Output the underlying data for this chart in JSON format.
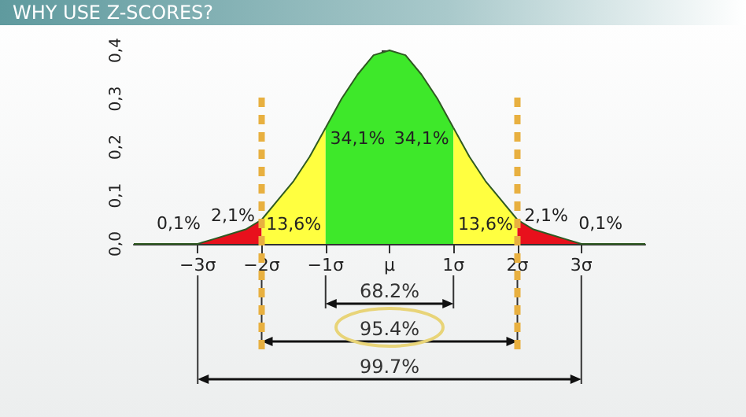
{
  "chart_data": {
    "type": "area",
    "title": "WHY USE Z-SCORES?",
    "xlim": [
      -4,
      4
    ],
    "xticks": [
      {
        "value": -3,
        "label": "−3σ"
      },
      {
        "value": -2,
        "label": "−2σ"
      },
      {
        "value": -1,
        "label": "−1σ"
      },
      {
        "value": 0,
        "label": "μ"
      },
      {
        "value": 1,
        "label": "1σ"
      },
      {
        "value": 2,
        "label": "2σ"
      },
      {
        "value": 3,
        "label": "3σ"
      }
    ],
    "ylim": [
      0,
      0.4
    ],
    "yticks": [
      {
        "value": 0,
        "label": "0,0"
      },
      {
        "value": 0.1,
        "label": "0,1"
      },
      {
        "value": 0.2,
        "label": "0,2"
      },
      {
        "value": 0.3,
        "label": "0,3"
      },
      {
        "value": 0.4,
        "label": "0,4"
      }
    ],
    "marker": "none",
    "series": [
      {
        "color": "#e8101c",
        "x": [
          -4,
          -3.5,
          -3,
          -2.75,
          -2.5,
          -2.25,
          -2
        ],
        "values": [
          0,
          0,
          0,
          0.01,
          0.02,
          0.03,
          0.05
        ]
      },
      {
        "color": "#ffff40",
        "x": [
          -2,
          -1.75,
          -1.5,
          -1.25,
          -1
        ],
        "values": [
          0.05,
          0.09,
          0.13,
          0.18,
          0.24
        ]
      },
      {
        "color": "#3ee82a",
        "x": [
          -1,
          -0.75,
          -0.5,
          -0.25,
          0,
          0.25,
          0.5,
          0.75,
          1
        ],
        "values": [
          0.24,
          0.3,
          0.35,
          0.39,
          0.4,
          0.39,
          0.35,
          0.3,
          0.24
        ]
      },
      {
        "color": "#ffff40",
        "x": [
          1,
          1.25,
          1.5,
          1.75,
          2
        ],
        "values": [
          0.24,
          0.18,
          0.13,
          0.09,
          0.05
        ]
      },
      {
        "color": "#e8101c",
        "x": [
          2,
          2.25,
          2.5,
          2.75,
          3,
          3.5,
          4
        ],
        "values": [
          0.05,
          0.03,
          0.02,
          0.01,
          0,
          0,
          0
        ]
      }
    ],
    "ref_lines": [
      {
        "axis": "x",
        "value": -2,
        "color": "#e8b040",
        "line_style": "dashed"
      },
      {
        "axis": "x",
        "value": 2,
        "color": "#e8b040",
        "line_style": "dashed"
      }
    ],
    "annotations": [
      "0,1%",
      "2,1%",
      "13,6%",
      "34,1%",
      "34,1%",
      "13,6%",
      "2,1%",
      "0,1%",
      "68.2%",
      "95.4%",
      "99.7%"
    ]
  }
}
